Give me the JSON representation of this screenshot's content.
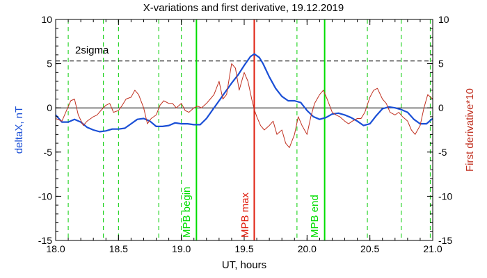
{
  "chart_data": {
    "type": "line",
    "title": "X-variations and first derivative, 19.12.2019",
    "xlabel": "UT, hours",
    "ylabel_left": "deltaX, nT",
    "ylabel_right": "First derivative*10",
    "xlim": [
      18.0,
      21.0
    ],
    "ylim": [
      -15,
      10
    ],
    "x_ticks": [
      "18.0",
      "18.5",
      "19.0",
      "19.5",
      "20.0",
      "20.5",
      "21.0"
    ],
    "y_ticks": [
      "10",
      "5",
      "0",
      "-5",
      "-10",
      "-15"
    ],
    "grid": false,
    "colors": {
      "deltaX": "#1a4fd6",
      "derivative": "#c03020",
      "mpb_edges": "#00dd00",
      "mpb_max": "#e02010",
      "dashed_green": "#00cc00"
    },
    "series": [
      {
        "key": "deltaX",
        "x": [
          18.0,
          18.05,
          18.1,
          18.15,
          18.2,
          18.25,
          18.3,
          18.35,
          18.4,
          18.45,
          18.5,
          18.55,
          18.6,
          18.65,
          18.7,
          18.75,
          18.8,
          18.85,
          18.9,
          18.95,
          19.0,
          19.05,
          19.1,
          19.15,
          19.2,
          19.25,
          19.3,
          19.35,
          19.4,
          19.45,
          19.5,
          19.55,
          19.58,
          19.62,
          19.65,
          19.7,
          19.75,
          19.8,
          19.85,
          19.9,
          19.95,
          20.0,
          20.05,
          20.1,
          20.15,
          20.2,
          20.25,
          20.3,
          20.35,
          20.4,
          20.45,
          20.5,
          20.55,
          20.6,
          20.65,
          20.7,
          20.75,
          20.8,
          20.85,
          20.9,
          20.95,
          21.0
        ],
        "y": [
          -0.8,
          -1.6,
          -1.6,
          -1.3,
          -1.6,
          -2.2,
          -2.5,
          -2.7,
          -2.6,
          -2.4,
          -2.4,
          -2.3,
          -1.8,
          -1.3,
          -1.2,
          -1.5,
          -2.1,
          -2.1,
          -2.0,
          -1.7,
          -1.8,
          -1.8,
          -1.9,
          -1.9,
          -1.2,
          -0.2,
          0.8,
          1.8,
          2.8,
          3.7,
          4.8,
          5.8,
          6.1,
          5.7,
          5.0,
          3.5,
          2.2,
          1.3,
          0.8,
          0.8,
          0.6,
          -0.3,
          -1.0,
          -1.3,
          -1.1,
          -0.7,
          -0.6,
          -0.8,
          -1.1,
          -1.5,
          -2.0,
          -1.8,
          -0.9,
          -0.1,
          0.1,
          0.0,
          -0.2,
          -0.5,
          -1.3,
          -1.8,
          -1.8,
          -1.2
        ]
      },
      {
        "key": "derivative",
        "x": [
          18.0,
          18.05,
          18.08,
          18.12,
          18.15,
          18.18,
          18.22,
          18.25,
          18.3,
          18.33,
          18.36,
          18.4,
          18.43,
          18.46,
          18.5,
          18.53,
          18.56,
          18.6,
          18.63,
          18.66,
          18.7,
          18.73,
          18.76,
          18.8,
          18.83,
          18.86,
          18.9,
          18.93,
          18.96,
          19.0,
          19.03,
          19.06,
          19.1,
          19.13,
          19.16,
          19.2,
          19.23,
          19.26,
          19.3,
          19.33,
          19.36,
          19.4,
          19.43,
          19.46,
          19.5,
          19.53,
          19.56,
          19.58,
          19.6,
          19.63,
          19.66,
          19.7,
          19.73,
          19.76,
          19.8,
          19.83,
          19.86,
          19.9,
          19.93,
          19.96,
          20.0,
          20.03,
          20.06,
          20.1,
          20.13,
          20.16,
          20.2,
          20.23,
          20.26,
          20.3,
          20.33,
          20.36,
          20.4,
          20.43,
          20.46,
          20.5,
          20.53,
          20.56,
          20.6,
          20.63,
          20.66,
          20.7,
          20.73,
          20.76,
          20.8,
          20.83,
          20.86,
          20.9,
          20.93,
          20.96,
          21.0
        ],
        "y": [
          -1.2,
          -1.5,
          -0.5,
          0.8,
          1.0,
          -0.8,
          -2.0,
          -1.5,
          -1.0,
          -0.8,
          -0.3,
          0.3,
          0.5,
          -0.5,
          -0.3,
          0.3,
          1.0,
          1.2,
          2.0,
          1.5,
          0.0,
          -1.8,
          -1.2,
          -0.8,
          0.3,
          0.8,
          0.5,
          0.5,
          0.0,
          0.5,
          -0.3,
          -0.5,
          0.0,
          0.2,
          0.0,
          0.5,
          1.0,
          1.5,
          3.0,
          1.0,
          1.5,
          5.0,
          4.5,
          2.0,
          4.0,
          3.0,
          1.0,
          -0.2,
          -1.0,
          -2.0,
          -2.5,
          -2.0,
          -1.5,
          -3.0,
          -2.5,
          -4.0,
          -4.5,
          -3.0,
          -1.0,
          -2.0,
          -3.0,
          -1.0,
          0.5,
          1.5,
          2.0,
          1.0,
          -0.5,
          -0.8,
          -1.0,
          -1.5,
          -1.8,
          -1.5,
          -1.2,
          -1.2,
          -0.5,
          1.2,
          2.0,
          2.2,
          1.0,
          0.5,
          -0.5,
          -0.8,
          -0.5,
          -1.0,
          -1.5,
          -2.5,
          -3.0,
          -2.0,
          0.0,
          1.5,
          1.0
        ]
      }
    ],
    "horizontal_lines": [
      {
        "key": "zero",
        "y": 0,
        "style": "solid"
      },
      {
        "key": "sigma",
        "y": 5.3,
        "style": "dashed",
        "label": "2sigma"
      }
    ],
    "dashed_verticals": [
      18.1,
      18.38,
      18.5,
      18.82,
      19.0,
      19.92,
      20.48,
      20.75,
      20.98
    ],
    "markers": [
      {
        "key": "mpb_begin",
        "x": 19.12,
        "label": "MPB begin"
      },
      {
        "key": "mpb_max",
        "x": 19.58,
        "label": "MPB max"
      },
      {
        "key": "mpb_end",
        "x": 20.14,
        "label": "MPB end"
      }
    ]
  }
}
